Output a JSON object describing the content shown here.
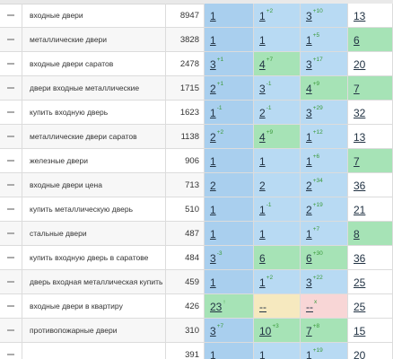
{
  "table": {
    "rows": [
      {
        "keyword": "входные двери",
        "frequency": 8947,
        "cells": [
          {
            "pos": "1",
            "change": null,
            "tone": "dblue"
          },
          {
            "pos": "1",
            "change": "+2",
            "tone": "blue"
          },
          {
            "pos": "3",
            "change": "+10",
            "tone": "blue"
          },
          {
            "pos": "13",
            "change": null,
            "tone": "plain"
          }
        ]
      },
      {
        "keyword": "металлические двери",
        "frequency": 3828,
        "cells": [
          {
            "pos": "1",
            "change": null,
            "tone": "dblue"
          },
          {
            "pos": "1",
            "change": null,
            "tone": "blue"
          },
          {
            "pos": "1",
            "change": "+5",
            "tone": "blue"
          },
          {
            "pos": "6",
            "change": null,
            "tone": "green"
          }
        ]
      },
      {
        "keyword": "входные двери саратов",
        "frequency": 2478,
        "cells": [
          {
            "pos": "3",
            "change": "+1",
            "tone": "dblue"
          },
          {
            "pos": "4",
            "change": "+7",
            "tone": "green"
          },
          {
            "pos": "3",
            "change": "+17",
            "tone": "blue"
          },
          {
            "pos": "20",
            "change": null,
            "tone": "plain"
          }
        ]
      },
      {
        "keyword": "двери входные металлические",
        "frequency": 1715,
        "cells": [
          {
            "pos": "2",
            "change": "+1",
            "tone": "dblue"
          },
          {
            "pos": "3",
            "change": "-1",
            "tone": "blue"
          },
          {
            "pos": "4",
            "change": "+9",
            "tone": "green"
          },
          {
            "pos": "7",
            "change": null,
            "tone": "green"
          }
        ]
      },
      {
        "keyword": "купить входную дверь",
        "frequency": 1623,
        "cells": [
          {
            "pos": "1",
            "change": "-1",
            "tone": "dblue"
          },
          {
            "pos": "2",
            "change": "-1",
            "tone": "blue"
          },
          {
            "pos": "3",
            "change": "+29",
            "tone": "blue"
          },
          {
            "pos": "32",
            "change": null,
            "tone": "plain"
          }
        ]
      },
      {
        "keyword": "металлические двери саратов",
        "frequency": 1138,
        "cells": [
          {
            "pos": "2",
            "change": "+2",
            "tone": "dblue"
          },
          {
            "pos": "4",
            "change": "+9",
            "tone": "green"
          },
          {
            "pos": "1",
            "change": "+12",
            "tone": "blue"
          },
          {
            "pos": "13",
            "change": null,
            "tone": "plain"
          }
        ]
      },
      {
        "keyword": "железные двери",
        "frequency": 906,
        "cells": [
          {
            "pos": "1",
            "change": null,
            "tone": "dblue"
          },
          {
            "pos": "1",
            "change": null,
            "tone": "blue"
          },
          {
            "pos": "1",
            "change": "+6",
            "tone": "blue"
          },
          {
            "pos": "7",
            "change": null,
            "tone": "green"
          }
        ]
      },
      {
        "keyword": "входные двери цена",
        "frequency": 713,
        "cells": [
          {
            "pos": "2",
            "change": null,
            "tone": "dblue"
          },
          {
            "pos": "2",
            "change": null,
            "tone": "blue"
          },
          {
            "pos": "2",
            "change": "+34",
            "tone": "blue"
          },
          {
            "pos": "36",
            "change": null,
            "tone": "plain"
          }
        ]
      },
      {
        "keyword": "купить металлическую дверь",
        "frequency": 510,
        "cells": [
          {
            "pos": "1",
            "change": null,
            "tone": "dblue"
          },
          {
            "pos": "1",
            "change": "-1",
            "tone": "blue"
          },
          {
            "pos": "2",
            "change": "+19",
            "tone": "blue"
          },
          {
            "pos": "21",
            "change": null,
            "tone": "plain"
          }
        ]
      },
      {
        "keyword": "стальные двери",
        "frequency": 487,
        "cells": [
          {
            "pos": "1",
            "change": null,
            "tone": "dblue"
          },
          {
            "pos": "1",
            "change": null,
            "tone": "blue"
          },
          {
            "pos": "1",
            "change": "+7",
            "tone": "blue"
          },
          {
            "pos": "8",
            "change": null,
            "tone": "green"
          }
        ]
      },
      {
        "keyword": "купить входную дверь в саратове",
        "frequency": 484,
        "cells": [
          {
            "pos": "3",
            "change": "-3",
            "tone": "dblue"
          },
          {
            "pos": "6",
            "change": null,
            "tone": "green"
          },
          {
            "pos": "6",
            "change": "+30",
            "tone": "green"
          },
          {
            "pos": "36",
            "change": null,
            "tone": "plain"
          }
        ]
      },
      {
        "keyword": "дверь входная металлическая купить",
        "frequency": 459,
        "cells": [
          {
            "pos": "1",
            "change": null,
            "tone": "dblue"
          },
          {
            "pos": "1",
            "change": "+2",
            "tone": "blue"
          },
          {
            "pos": "3",
            "change": "+22",
            "tone": "blue"
          },
          {
            "pos": "25",
            "change": null,
            "tone": "plain"
          }
        ]
      },
      {
        "keyword": "входные двери в квартиру",
        "frequency": 426,
        "cells": [
          {
            "pos": "23",
            "change": "↑",
            "tone": "green"
          },
          {
            "pos": "--",
            "change": null,
            "tone": "yellow"
          },
          {
            "pos": "--",
            "change": "x",
            "tone": "pink"
          },
          {
            "pos": "25",
            "change": null,
            "tone": "plain"
          }
        ]
      },
      {
        "keyword": "противопожарные двери",
        "frequency": 310,
        "cells": [
          {
            "pos": "3",
            "change": "+7",
            "tone": "dblue"
          },
          {
            "pos": "10",
            "change": "+3",
            "tone": "green"
          },
          {
            "pos": "7",
            "change": "+8",
            "tone": "green"
          },
          {
            "pos": "15",
            "change": null,
            "tone": "plain"
          }
        ]
      },
      {
        "keyword": null,
        "frequency": 391,
        "cells": [
          {
            "pos": "1",
            "change": null,
            "tone": "dblue"
          },
          {
            "pos": "1",
            "change": null,
            "tone": "blue"
          },
          {
            "pos": "1",
            "change": "+19",
            "tone": "blue"
          },
          {
            "pos": "20",
            "change": null,
            "tone": "plain"
          }
        ]
      }
    ]
  }
}
